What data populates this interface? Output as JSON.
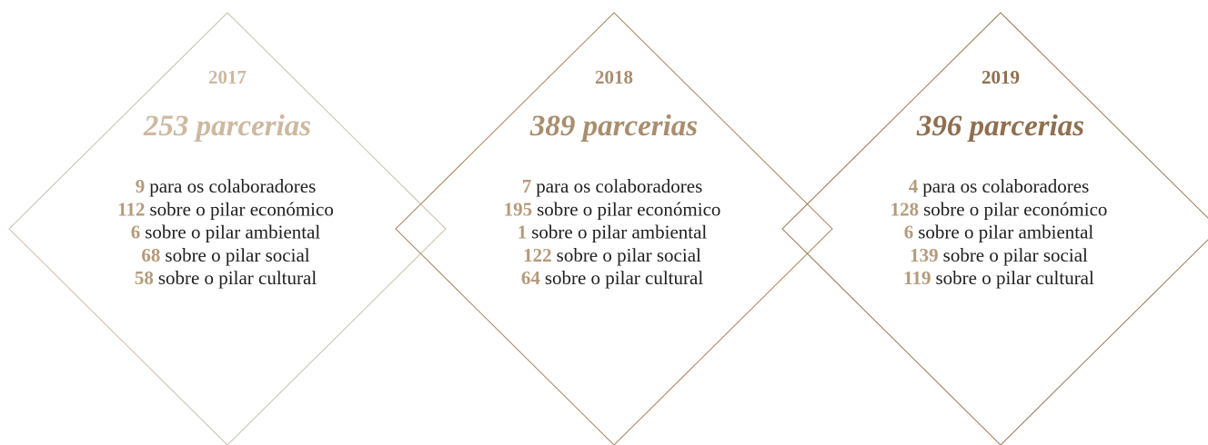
{
  "cards": [
    {
      "year": "2017",
      "total": "253 parcerias",
      "items": [
        {
          "value": "9",
          "label": "para os colaboradores"
        },
        {
          "value": "112",
          "label": "sobre o pilar económico"
        },
        {
          "value": "6",
          "label": "sobre o pilar ambiental"
        },
        {
          "value": "68",
          "label": "sobre o pilar social"
        },
        {
          "value": "58",
          "label": "sobre o pilar cultural"
        }
      ]
    },
    {
      "year": "2018",
      "total": "389 parcerias",
      "items": [
        {
          "value": "7",
          "label": "para os colaboradores"
        },
        {
          "value": "195",
          "label": "sobre o pilar económico"
        },
        {
          "value": "1",
          "label": "sobre o pilar ambiental"
        },
        {
          "value": "122",
          "label": "sobre o pilar social"
        },
        {
          "value": "64",
          "label": "sobre o pilar cultural"
        }
      ]
    },
    {
      "year": "2019",
      "total": "396 parcerias",
      "items": [
        {
          "value": "4",
          "label": "para os colaboradores"
        },
        {
          "value": "128",
          "label": "sobre o pilar económico"
        },
        {
          "value": "6",
          "label": "sobre o pilar ambiental"
        },
        {
          "value": "139",
          "label": "sobre o pilar social"
        },
        {
          "value": "119",
          "label": "sobre o pilar cultural"
        }
      ]
    }
  ]
}
